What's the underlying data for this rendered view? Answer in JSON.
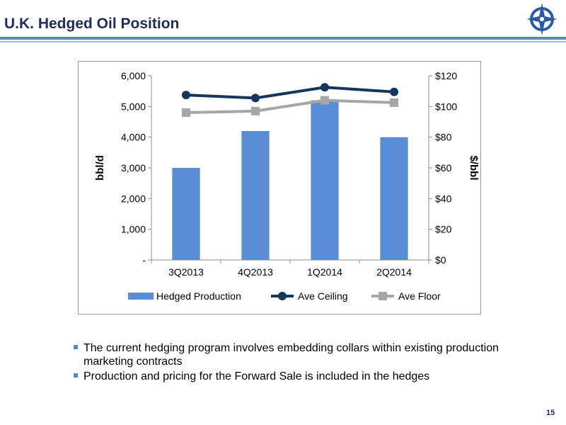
{
  "header": {
    "title": "U.K. Hedged Oil Position",
    "page_number": "15"
  },
  "colors": {
    "bar": "#5b8dd6",
    "ceiling": "#17365d",
    "floor": "#a6a6a6",
    "rule": "#5b86c6",
    "logo": "#2b5aa7"
  },
  "logo": {
    "icon": "compass-star-icon"
  },
  "chart_data": {
    "type": "bar",
    "categories": [
      "3Q2013",
      "4Q2013",
      "1Q2014",
      "2Q2014"
    ],
    "series": [
      {
        "name": "Hedged Production",
        "type": "bar",
        "axis": "left",
        "values": [
          3000,
          4200,
          5200,
          4000
        ]
      },
      {
        "name": "Ave Ceiling",
        "type": "line",
        "axis": "right",
        "marker": "circle",
        "values": [
          107.5,
          105.5,
          112.5,
          109.5
        ]
      },
      {
        "name": "Ave Floor",
        "type": "line",
        "axis": "right",
        "marker": "square",
        "values": [
          96,
          97,
          104,
          102.5
        ]
      }
    ],
    "ylabel": "bbl/d",
    "y2label": "$/bbl",
    "ylim": [
      0,
      6000
    ],
    "y2lim": [
      0,
      120
    ],
    "yticks": [
      "-",
      "1,000",
      "2,000",
      "3,000",
      "4,000",
      "5,000",
      "6,000"
    ],
    "y2ticks": [
      "$0",
      "$20",
      "$40",
      "$60",
      "$80",
      "$100",
      "$120"
    ],
    "grid": false,
    "legend_position": "bottom"
  },
  "bullets": [
    "The current hedging program involves embedding collars within existing production marketing contracts",
    "Production and pricing for the Forward Sale is included in the hedges"
  ]
}
